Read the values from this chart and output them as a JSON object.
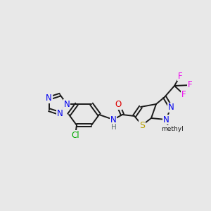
{
  "background_color": "#e8e8e8",
  "bond_color": "#1a1a1a",
  "atom_colors": {
    "N": "#0000ee",
    "O": "#dd0000",
    "S": "#b8a000",
    "Cl": "#00aa00",
    "F": "#ee00ee",
    "C": "#1a1a1a",
    "H": "#607070"
  },
  "title": "",
  "figsize": [
    3.0,
    3.0
  ],
  "dpi": 100
}
